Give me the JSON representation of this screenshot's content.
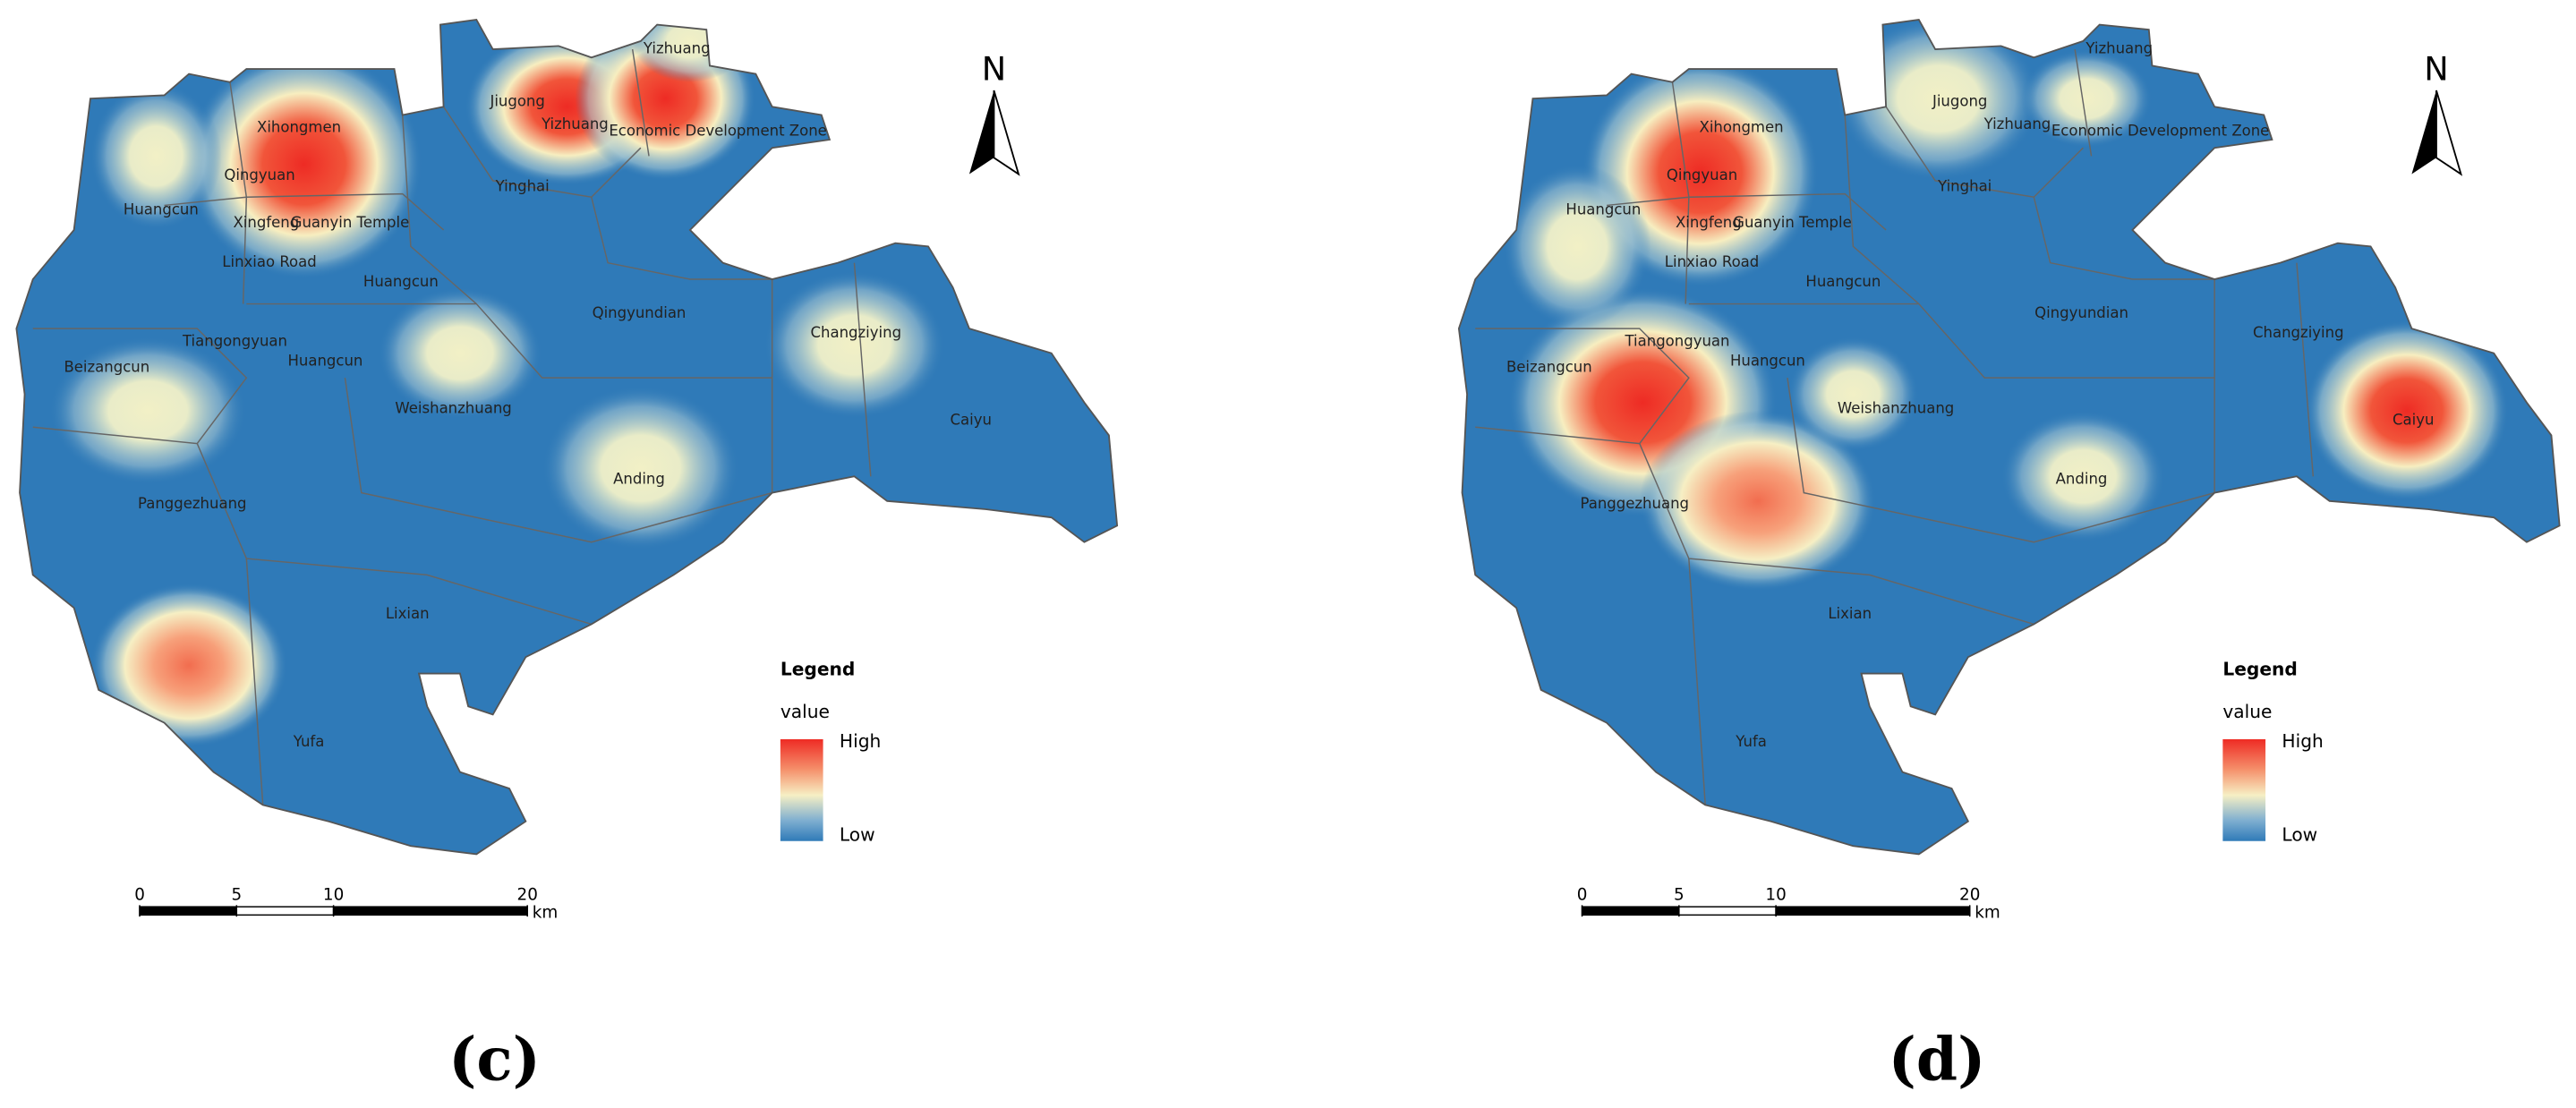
{
  "panels": [
    {
      "label": "(c)",
      "north": "N",
      "places": [
        "Xihongmen",
        "Qingyuan",
        "Huangcun",
        "Xingfeng",
        "Guanyin Temple",
        "Linxiao Road",
        "Huangcun",
        "Jiugong",
        "Yizhuang",
        "Yizhuang",
        "Economic Development Zone",
        "Yinghai",
        "Qingyundian",
        "Changziying",
        "Tiangongyuan",
        "Huangcun",
        "Beizangcun",
        "Weishanzhuang",
        "Caiyu",
        "Anding",
        "Panggezhuang",
        "Lixian",
        "Yufa"
      ],
      "legend": {
        "title": "Legend",
        "subtitle": "value",
        "high": "High",
        "low": "Low"
      },
      "scale_bar": {
        "ticks": [
          0,
          5,
          10,
          20
        ],
        "unit": "km"
      }
    },
    {
      "label": "(d)",
      "north": "N",
      "places": [
        "Xihongmen",
        "Qingyuan",
        "Huangcun",
        "Xingfeng",
        "Guanyin Temple",
        "Linxiao Road",
        "Huangcun",
        "Jiugong",
        "Yizhuang",
        "Yizhuang",
        "Economic Development Zone",
        "Yinghai",
        "Qingyundian",
        "Changziying",
        "Tiangongyuan",
        "Huangcun",
        "Beizangcun",
        "Weishanzhuang",
        "Caiyu",
        "Anding",
        "Panggezhuang",
        "Lixian",
        "Yufa"
      ],
      "legend": {
        "title": "Legend",
        "subtitle": "value",
        "high": "High",
        "low": "Low"
      },
      "scale_bar": {
        "ticks": [
          0,
          5,
          10,
          20
        ],
        "unit": "km"
      }
    }
  ]
}
